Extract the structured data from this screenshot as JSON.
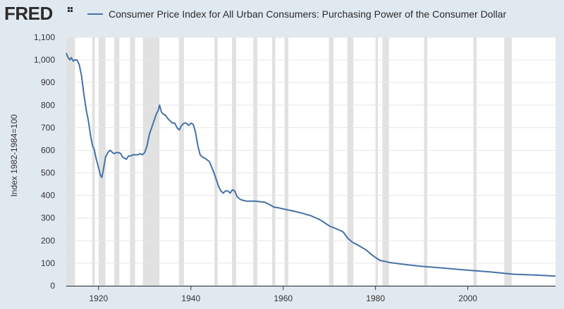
{
  "brand": {
    "logo_text": "FRED"
  },
  "chart_data": {
    "type": "line",
    "title": "",
    "ylabel": "Index 1982-1984=100",
    "xlabel": "",
    "xlim": [
      1913,
      2019
    ],
    "ylim": [
      0,
      1100
    ],
    "x_ticks": [
      1920,
      1940,
      1960,
      1980,
      2000
    ],
    "x_tick_labels": [
      "1920",
      "1940",
      "1960",
      "1980",
      "2000"
    ],
    "y_ticks": [
      0,
      100,
      200,
      300,
      400,
      500,
      600,
      700,
      800,
      900,
      1000,
      1100
    ],
    "y_tick_labels": [
      "0",
      "100",
      "200",
      "300",
      "400",
      "500",
      "600",
      "700",
      "800",
      "900",
      "1,000",
      "1,100"
    ],
    "grid": true,
    "legend_position": "top",
    "recessions": [
      [
        1913.0,
        1914.9
      ],
      [
        1918.6,
        1919.2
      ],
      [
        1920.0,
        1921.5
      ],
      [
        1923.4,
        1924.5
      ],
      [
        1926.8,
        1927.9
      ],
      [
        1929.6,
        1933.2
      ],
      [
        1937.4,
        1938.5
      ],
      [
        1945.1,
        1945.8
      ],
      [
        1948.9,
        1949.8
      ],
      [
        1953.5,
        1954.4
      ],
      [
        1957.6,
        1958.3
      ],
      [
        1960.3,
        1961.1
      ],
      [
        1969.9,
        1970.9
      ],
      [
        1973.9,
        1975.2
      ],
      [
        1980.0,
        1980.5
      ],
      [
        1981.5,
        1982.9
      ],
      [
        1990.5,
        1991.2
      ],
      [
        2001.2,
        2001.9
      ],
      [
        2007.9,
        2009.5
      ]
    ],
    "series": [
      {
        "name": "Consumer Price Index for All Urban Consumers: Purchasing Power of the Consumer Dollar",
        "color": "#4572a7",
        "x": [
          1913.0,
          1913.4,
          1913.8,
          1914.1,
          1914.5,
          1914.9,
          1915.3,
          1915.8,
          1916.3,
          1916.8,
          1917.3,
          1917.8,
          1918.3,
          1918.7,
          1919.1,
          1919.5,
          1919.9,
          1920.4,
          1920.7,
          1921.0,
          1921.5,
          1922.0,
          1922.5,
          1923.0,
          1923.4,
          1923.8,
          1924.3,
          1924.8,
          1925.2,
          1925.6,
          1926.0,
          1926.5,
          1927.0,
          1927.5,
          1928.0,
          1928.5,
          1929.0,
          1929.5,
          1930.0,
          1930.5,
          1931.0,
          1931.5,
          1932.0,
          1932.5,
          1932.9,
          1933.2,
          1933.6,
          1934.0,
          1934.5,
          1935.0,
          1935.5,
          1936.0,
          1936.5,
          1937.0,
          1937.5,
          1938.0,
          1938.5,
          1939.0,
          1939.5,
          1940.0,
          1940.5,
          1941.0,
          1941.5,
          1942.0,
          1942.5,
          1943.0,
          1944.0,
          1945.0,
          1945.5,
          1946.0,
          1946.5,
          1947.0,
          1947.5,
          1948.0,
          1948.5,
          1949.0,
          1949.5,
          1950.0,
          1950.5,
          1951.0,
          1952.0,
          1953.0,
          1954.0,
          1955.0,
          1956.0,
          1957.0,
          1958.0,
          1959.0,
          1960.0,
          1962.0,
          1964.0,
          1966.0,
          1968.0,
          1970.0,
          1972.0,
          1973.0,
          1974.0,
          1975.0,
          1976.0,
          1977.0,
          1978.0,
          1979.0,
          1980.0,
          1981.0,
          1982.0,
          1983.0,
          1985.0,
          1987.0,
          1990.0,
          1995.0,
          2000.0,
          2005.0,
          2008.0,
          2010.0,
          2015.0,
          2019.0
        ],
        "y": [
          1030,
          1010,
          1000,
          1010,
          995,
          1000,
          1000,
          980,
          930,
          850,
          780,
          730,
          660,
          620,
          600,
          560,
          530,
          490,
          480,
          510,
          570,
          590,
          600,
          590,
          585,
          590,
          590,
          585,
          570,
          565,
          560,
          575,
          575,
          580,
          580,
          580,
          585,
          580,
          590,
          620,
          670,
          700,
          730,
          760,
          775,
          800,
          770,
          760,
          755,
          740,
          730,
          720,
          720,
          700,
          690,
          710,
          720,
          720,
          710,
          720,
          715,
          680,
          620,
          580,
          570,
          565,
          550,
          500,
          470,
          440,
          420,
          410,
          420,
          420,
          410,
          425,
          420,
          395,
          385,
          380,
          375,
          375,
          375,
          372,
          370,
          360,
          348,
          345,
          340,
          332,
          322,
          310,
          292,
          265,
          248,
          238,
          210,
          193,
          182,
          170,
          158,
          140,
          125,
          112,
          108,
          103,
          98,
          93,
          86,
          78,
          69,
          61,
          55,
          51,
          47,
          43
        ]
      }
    ]
  }
}
